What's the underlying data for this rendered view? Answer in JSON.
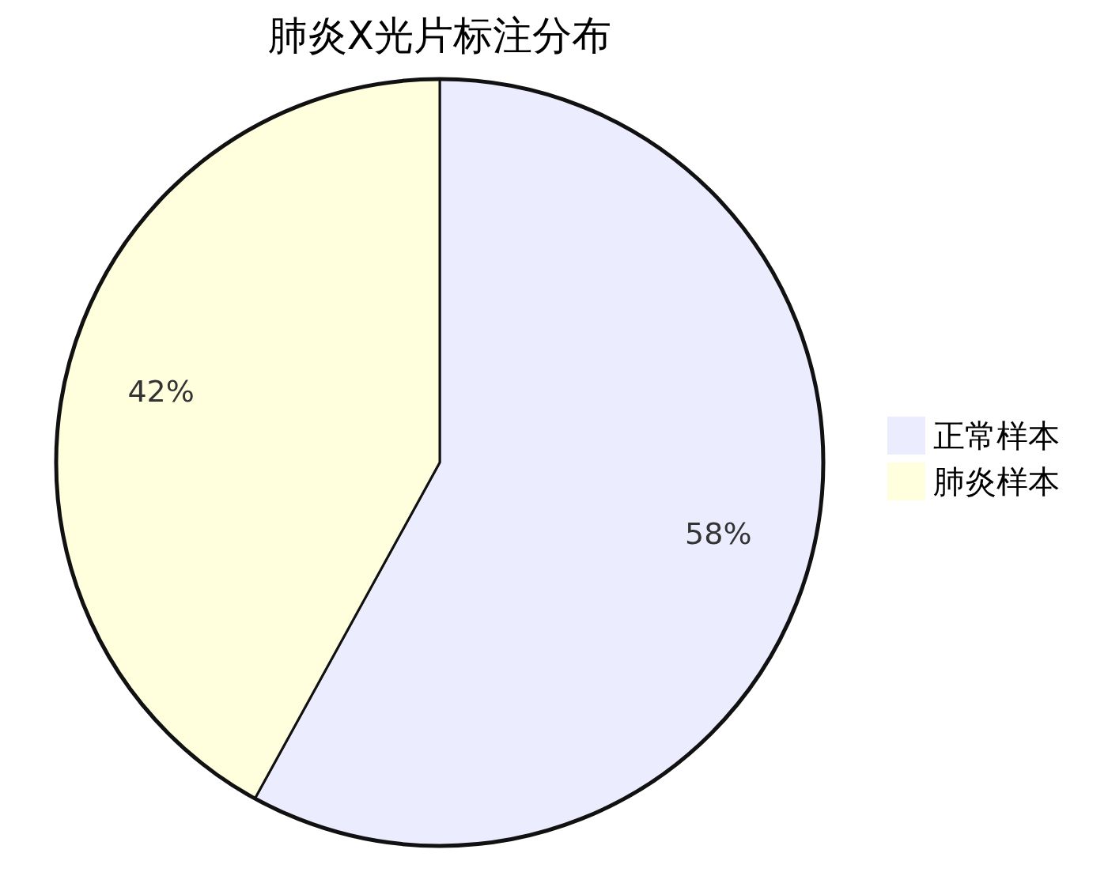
{
  "chart_data": {
    "type": "pie",
    "title": "肺炎X光片标注分布",
    "categories": [
      "正常样本",
      "肺炎样本"
    ],
    "values": [
      58,
      42
    ],
    "colors": [
      "#ececff",
      "#ffffde"
    ],
    "value_labels": [
      "58%",
      "42%"
    ],
    "legend": "right"
  }
}
